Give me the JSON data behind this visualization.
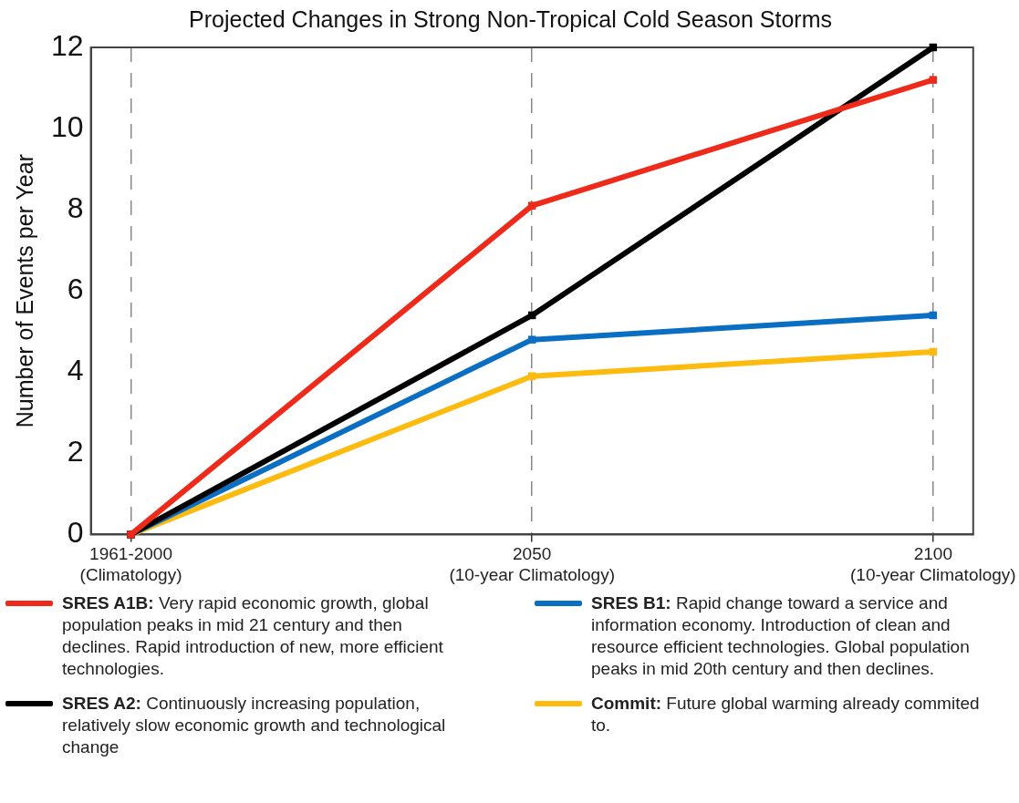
{
  "chart_data": {
    "type": "line",
    "title": "Projected Changes in Strong Non-Tropical Cold Season Storms",
    "ylabel": "Number of Events per Year",
    "categories": [
      "1961-2000\n(Climatology)",
      "2050\n(10-year Climatology)",
      "2100\n(10-year Climatology)"
    ],
    "series": [
      {
        "name": "SRES A1B: Very rapid economic growth, global population peaks in mid 21 century and then declines. Rapid introduction of new, more efficient technologies.",
        "color": "#ee2a1b",
        "values": [
          0,
          8.1,
          11.2
        ]
      },
      {
        "name": "SRES A2: Continuously increasing population, relatively slow economic growth and technological change",
        "color": "#000000",
        "values": [
          0,
          5.4,
          12
        ]
      },
      {
        "name": "SRES B1: Rapid change toward a service and information economy. Introduction of clean and resource efficient technologies. Global population peaks in mid 20th century and then declines.",
        "color": "#0a6fc2",
        "values": [
          0,
          4.8,
          5.4
        ]
      },
      {
        "name": "Commit: Future global warming already commited to.",
        "color": "#fdbb0f",
        "values": [
          0,
          3.9,
          4.5
        ]
      }
    ],
    "ylim": [
      0,
      12
    ],
    "yticks": [
      0,
      2,
      4,
      6,
      8,
      10,
      12
    ],
    "grid": "x",
    "legend": "bottom",
    "marker": "square",
    "line_style": "solid"
  }
}
